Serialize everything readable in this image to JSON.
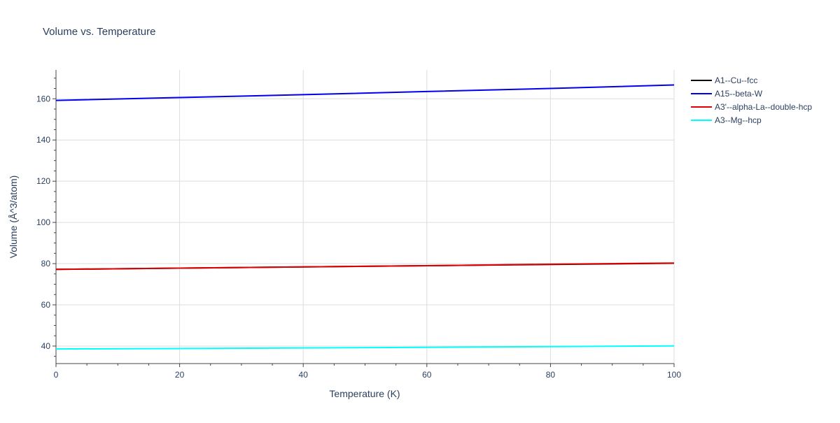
{
  "chart_data": {
    "type": "line",
    "title": "Volume vs. Temperature",
    "xlabel": "Temperature (K)",
    "ylabel": "Volume (Å^3/atom)",
    "xlim": [
      0,
      100
    ],
    "ylim": [
      31.5,
      174
    ],
    "x_ticks": [
      0,
      20,
      40,
      60,
      80,
      100
    ],
    "y_ticks": [
      40,
      60,
      80,
      100,
      120,
      140,
      160
    ],
    "grid": true,
    "legend_position": "top-right",
    "series": [
      {
        "name": "A1--Cu--fcc",
        "color": "#000000",
        "x": [
          0,
          20,
          40,
          60,
          80,
          100
        ],
        "values": [
          77.2,
          77.8,
          78.4,
          79.0,
          79.6,
          80.2
        ]
      },
      {
        "name": "A15--beta-W",
        "color": "#0000ee",
        "x": [
          0,
          20,
          40,
          60,
          80,
          100
        ],
        "values": [
          159.2,
          160.6,
          162.0,
          163.5,
          165.0,
          166.7
        ]
      },
      {
        "name": "A3'--alpha-La--double-hcp",
        "color": "#e00000",
        "x": [
          0,
          20,
          40,
          60,
          80,
          100
        ],
        "values": [
          77.2,
          77.8,
          78.4,
          79.0,
          79.7,
          80.3
        ]
      },
      {
        "name": "A3--Mg--hcp",
        "color": "#00ffff",
        "x": [
          0,
          20,
          40,
          60,
          80,
          100
        ],
        "values": [
          38.6,
          38.8,
          39.1,
          39.4,
          39.7,
          40.1
        ]
      }
    ]
  }
}
